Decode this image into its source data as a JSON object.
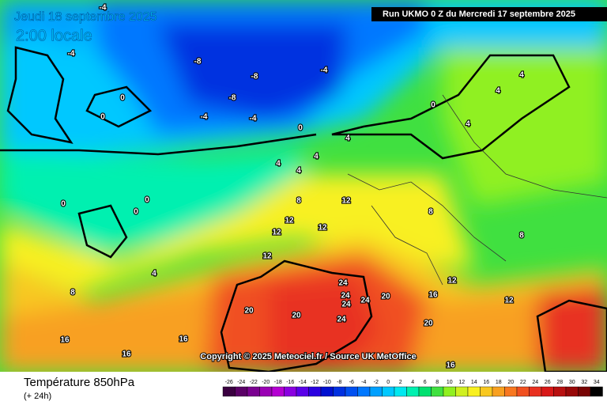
{
  "header": {
    "date": "Jeudi 18 septembre 2025",
    "time": "2:00 locale",
    "run": "Run UKMO 0 Z du Mercredi 17 septembre 2025"
  },
  "copyright": "Copyright © 2025 Meteociel.fr / Source UK MetOffice",
  "footer": {
    "title": "Température 850hPa",
    "lead": "(+ 24h)"
  },
  "scale": {
    "ticks": [
      -26,
      -24,
      -22,
      -20,
      -18,
      -16,
      -14,
      -12,
      -10,
      -8,
      -6,
      -4,
      -2,
      0,
      2,
      4,
      6,
      8,
      10,
      12,
      14,
      16,
      18,
      20,
      22,
      24,
      26,
      28,
      30,
      32,
      34
    ],
    "colors": [
      "#3a0040",
      "#5a0066",
      "#7a0090",
      "#9a00b4",
      "#b400d2",
      "#8a00e0",
      "#5a00e8",
      "#2a00e0",
      "#0010d0",
      "#0030e0",
      "#0050f0",
      "#0078ff",
      "#00a0ff",
      "#00c8ff",
      "#00e8f0",
      "#00f0b0",
      "#00e070",
      "#40e040",
      "#90f020",
      "#d0f020",
      "#f8f020",
      "#f8c820",
      "#f8a020",
      "#f87820",
      "#f05020",
      "#e83020",
      "#d81818",
      "#b81010",
      "#980808",
      "#780404",
      "#000000"
    ]
  },
  "contour_labels": [
    -4,
    -4,
    -8,
    -8,
    -8,
    -4,
    -4,
    -4,
    0,
    0,
    0,
    0,
    4,
    4,
    4,
    4,
    4,
    4,
    4,
    4,
    8,
    8,
    8,
    8,
    12,
    12,
    12,
    12,
    12,
    16,
    16,
    16,
    16,
    16,
    20,
    20,
    20,
    20,
    24,
    24,
    24,
    24,
    24,
    0,
    0,
    0,
    12,
    12
  ]
}
